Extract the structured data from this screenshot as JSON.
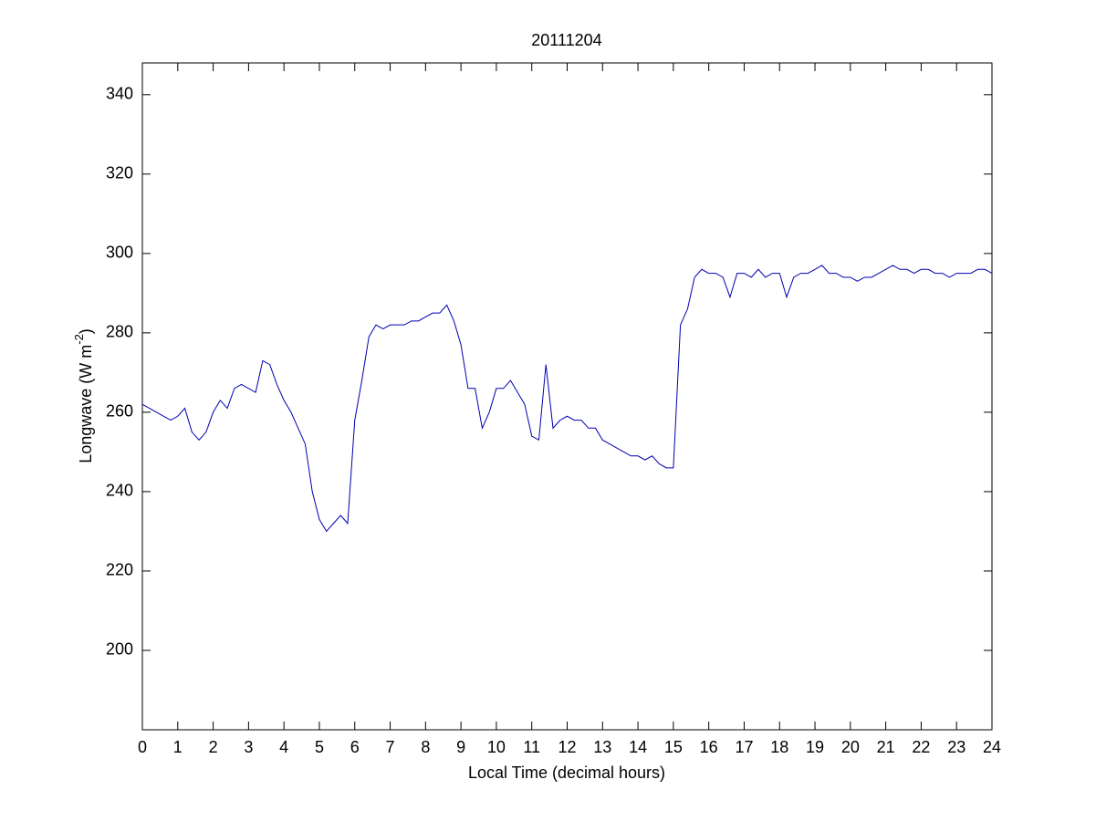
{
  "chart_data": {
    "type": "line",
    "title": "20111204",
    "xlabel": "Local Time (decimal hours)",
    "ylabel": {
      "text": "Longwave (W m",
      "superscript": "-2",
      "suffix": ")"
    },
    "x": [
      0,
      0.2,
      0.4,
      0.6,
      0.8,
      1,
      1.2,
      1.4,
      1.6,
      1.8,
      2,
      2.2,
      2.4,
      2.6,
      2.8,
      3,
      3.2,
      3.4,
      3.6,
      3.8,
      4,
      4.2,
      4.4,
      4.6,
      4.8,
      5,
      5.2,
      5.4,
      5.6,
      5.8,
      6,
      6.2,
      6.4,
      6.6,
      6.8,
      7,
      7.2,
      7.4,
      7.6,
      7.8,
      8,
      8.2,
      8.4,
      8.6,
      8.8,
      9,
      9.2,
      9.4,
      9.6,
      9.8,
      10,
      10.2,
      10.4,
      10.6,
      10.8,
      11,
      11.2,
      11.4,
      11.6,
      11.8,
      12,
      12.2,
      12.4,
      12.6,
      12.8,
      13,
      13.2,
      13.4,
      13.6,
      13.8,
      14,
      14.2,
      14.4,
      14.6,
      14.8,
      15,
      15.2,
      15.4,
      15.6,
      15.8,
      16,
      16.2,
      16.4,
      16.6,
      16.8,
      17,
      17.2,
      17.4,
      17.6,
      17.8,
      18,
      18.2,
      18.4,
      18.6,
      18.8,
      19,
      19.2,
      19.4,
      19.6,
      19.8,
      20,
      20.2,
      20.4,
      20.6,
      20.8,
      21,
      21.2,
      21.4,
      21.6,
      21.8,
      22,
      22.2,
      22.4,
      22.6,
      22.8,
      23,
      23.2,
      23.4,
      23.6,
      23.8,
      24
    ],
    "series": [
      {
        "color": "#0000b0",
        "values": [
          262,
          261,
          260,
          259,
          258,
          259,
          261,
          255,
          253,
          255,
          260,
          263,
          261,
          266,
          267,
          266,
          265,
          273,
          272,
          267,
          263,
          260,
          256,
          252,
          240,
          233,
          230,
          232,
          234,
          232,
          258,
          268,
          279,
          282,
          281,
          282,
          282,
          282,
          283,
          283,
          284,
          285,
          285,
          287,
          283,
          277,
          266,
          266,
          256,
          260,
          266,
          266,
          268,
          265,
          262,
          254,
          253,
          272,
          256,
          258,
          259,
          258,
          258,
          256,
          256,
          253,
          252,
          251,
          250,
          249,
          249,
          248,
          249,
          247,
          246,
          246,
          282,
          286,
          294,
          296,
          295,
          295,
          294,
          289,
          295,
          295,
          294,
          296,
          294,
          295,
          295,
          289,
          294,
          295,
          295,
          296,
          297,
          295,
          295,
          294,
          294,
          293,
          294,
          294,
          295,
          296,
          297,
          296,
          296,
          295,
          296,
          296,
          295,
          295,
          294,
          295,
          295,
          295,
          296,
          296,
          295
        ]
      }
    ],
    "xlim": [
      0,
      24
    ],
    "ylim": [
      180,
      348
    ],
    "xticks": [
      0,
      1,
      2,
      3,
      4,
      5,
      6,
      7,
      8,
      9,
      10,
      11,
      12,
      13,
      14,
      15,
      16,
      17,
      18,
      19,
      20,
      21,
      22,
      23,
      24
    ],
    "yticks": [
      200,
      220,
      240,
      260,
      280,
      300,
      320,
      340
    ]
  }
}
